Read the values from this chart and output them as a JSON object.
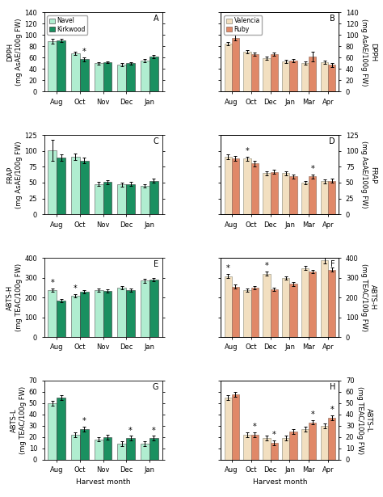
{
  "panel_A": {
    "label": "A",
    "categories": [
      "Aug",
      "Oct",
      "Nov",
      "Dec",
      "Jan"
    ],
    "series": {
      "Navel": [
        89,
        68,
        50,
        48,
        55
      ],
      "Kirkwood": [
        90,
        57,
        52,
        50,
        62
      ]
    },
    "errors": {
      "Navel": [
        4,
        3,
        2,
        3,
        3
      ],
      "Kirkwood": [
        3,
        3,
        2,
        2,
        3
      ]
    },
    "star_on_series2": [
      1
    ],
    "ylim": [
      0,
      140
    ],
    "yticks": [
      0,
      20,
      40,
      60,
      80,
      100,
      120,
      140
    ]
  },
  "panel_B": {
    "label": "B",
    "categories": [
      "Aug",
      "Oct",
      "Dec",
      "Jan",
      "Mar",
      "Apr"
    ],
    "series": {
      "Valencia": [
        85,
        70,
        59,
        53,
        50,
        52
      ],
      "Ruby": [
        95,
        66,
        66,
        55,
        62,
        47
      ]
    },
    "errors": {
      "Valencia": [
        3,
        3,
        3,
        3,
        3,
        3
      ],
      "Ruby": [
        5,
        3,
        3,
        3,
        8,
        3
      ]
    },
    "star_on_series2": [],
    "ylim": [
      0,
      140
    ],
    "yticks": [
      0,
      20,
      40,
      60,
      80,
      100,
      120,
      140
    ],
    "ylabel_right": "DPPH\n(mg AsAE/100g FW)"
  },
  "panel_C": {
    "label": "C",
    "categories": [
      "Aug",
      "Oct",
      "Nov",
      "Dec",
      "Jan"
    ],
    "series": {
      "Navel": [
        101,
        91,
        48,
        47,
        45
      ],
      "Kirkwood": [
        90,
        85,
        51,
        48,
        53
      ]
    },
    "errors": {
      "Navel": [
        16,
        5,
        3,
        3,
        3
      ],
      "Kirkwood": [
        5,
        4,
        3,
        3,
        3
      ]
    },
    "star_on_series2": [],
    "ylim": [
      0,
      125
    ],
    "yticks": [
      0,
      25,
      50,
      75,
      100,
      125
    ]
  },
  "panel_D": {
    "label": "D",
    "categories": [
      "Aug",
      "Oct",
      "Dec",
      "Jan",
      "Mar",
      "Apr"
    ],
    "series": {
      "Valencia": [
        91,
        88,
        65,
        65,
        50,
        52
      ],
      "Ruby": [
        88,
        80,
        67,
        60,
        60,
        53
      ]
    },
    "errors": {
      "Valencia": [
        4,
        3,
        3,
        3,
        3,
        3
      ],
      "Ruby": [
        4,
        4,
        3,
        3,
        3,
        3
      ]
    },
    "star_on_series1": [
      1
    ],
    "star_on_series2": [
      4
    ],
    "ylim": [
      0,
      125
    ],
    "yticks": [
      0,
      25,
      50,
      75,
      100,
      125
    ],
    "ylabel_right": "FRAP\n(mg AsAE/100g FW)"
  },
  "panel_E": {
    "label": "E",
    "categories": [
      "Aug",
      "Oct",
      "Nov",
      "Dec",
      "Jan"
    ],
    "series": {
      "Navel": [
        237,
        210,
        237,
        248,
        285
      ],
      "Kirkwood": [
        183,
        228,
        233,
        238,
        290
      ]
    },
    "errors": {
      "Navel": [
        10,
        8,
        8,
        8,
        10
      ],
      "Kirkwood": [
        8,
        8,
        8,
        8,
        10
      ]
    },
    "star_on_series1": [
      0,
      1
    ],
    "star_on_series2": [],
    "ylim": [
      0,
      400
    ],
    "yticks": [
      0,
      100,
      200,
      300,
      400
    ]
  },
  "panel_F": {
    "label": "F",
    "categories": [
      "Aug",
      "Oct",
      "Dec",
      "Jan",
      "Mar",
      "Apr"
    ],
    "series": {
      "Valencia": [
        307,
        237,
        320,
        298,
        348,
        387
      ],
      "Ruby": [
        255,
        248,
        240,
        268,
        332,
        340
      ]
    },
    "errors": {
      "Valencia": [
        10,
        8,
        10,
        8,
        10,
        15
      ],
      "Ruby": [
        10,
        8,
        8,
        10,
        8,
        10
      ]
    },
    "star_on_series1": [
      0,
      2
    ],
    "star_on_series2": [],
    "ylim": [
      0,
      400
    ],
    "yticks": [
      0,
      100,
      200,
      300,
      400
    ],
    "ylabel_right": "ABTS-H\n(mg TEAC/100g FW)"
  },
  "panel_G": {
    "label": "G",
    "categories": [
      "Aug",
      "Oct",
      "Nov",
      "Dec",
      "Jan"
    ],
    "series": {
      "Navel": [
        50,
        22,
        18,
        14,
        14
      ],
      "Kirkwood": [
        55,
        27,
        20,
        19,
        19
      ]
    },
    "errors": {
      "Navel": [
        2,
        2,
        2,
        2,
        2
      ],
      "Kirkwood": [
        2,
        2,
        2,
        2,
        2
      ]
    },
    "star_on_series2": [
      1,
      3,
      4
    ],
    "ylim": [
      0,
      70
    ],
    "yticks": [
      0,
      10,
      20,
      30,
      40,
      50,
      60,
      70
    ]
  },
  "panel_H": {
    "label": "H",
    "categories": [
      "Aug",
      "Oct",
      "Dec",
      "Jan",
      "Mar",
      "Apr"
    ],
    "series": {
      "Valencia": [
        55,
        22,
        19,
        19,
        27,
        30
      ],
      "Ruby": [
        58,
        22,
        15,
        25,
        33,
        37
      ]
    },
    "errors": {
      "Valencia": [
        2,
        2,
        2,
        2,
        2,
        2
      ],
      "Ruby": [
        2,
        2,
        2,
        2,
        2,
        2
      ]
    },
    "star_on_series2": [
      1,
      2,
      4,
      5
    ],
    "ylim": [
      0,
      70
    ],
    "yticks": [
      0,
      10,
      20,
      30,
      40,
      50,
      60,
      70
    ],
    "ylabel_right": "ABTS-L\n(mg TEAC/100g FW)"
  },
  "ylabels_left": [
    "DPPH\n(mg AsAE/100g FW)",
    "FRAP\n(mg AsAE/100g FW)",
    "ABTS-H\n(mg TEAC/100g FW)",
    "ABTS-L\n(mg TEAC/100g FW)"
  ],
  "ylabels_right": [
    "DPPH\n(mg AsAE/100g FW)",
    "FRAP\n(mg AsAE/100g FW)",
    "ABTS-H\n(mg TEAC/100g FW)",
    "ABTS-L\n(mg TEAC/100g FW)"
  ],
  "navel_color": "#b0edd0",
  "kirkwood_color": "#1a9060",
  "valencia_color": "#f2dfc0",
  "ruby_color": "#e08868",
  "bar_width": 0.38
}
